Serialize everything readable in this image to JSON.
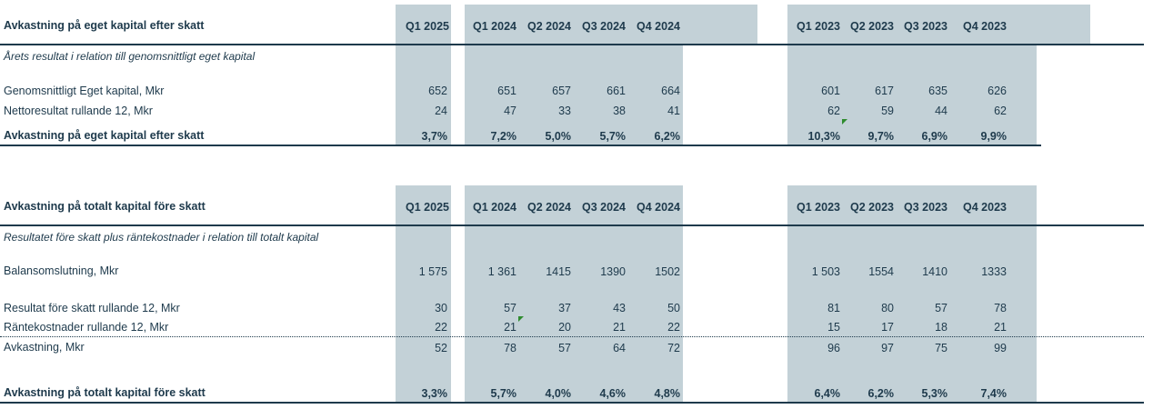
{
  "table1": {
    "title": "Avkastning på eget kapital efter skatt",
    "subtitle": "Årets resultat i relation till genomsnittligt eget kapital",
    "headers": [
      "Q1 2025",
      "Q1 2024",
      "Q2 2024",
      "Q3 2024",
      "Q4 2024",
      "Q1 2023",
      "Q2 2023",
      "Q3 2023",
      "Q4 2023"
    ],
    "rows": [
      {
        "label": "Genomsnittligt Eget kapital, Mkr",
        "values": [
          "652",
          "651",
          "657",
          "661",
          "664",
          "601",
          "617",
          "635",
          "626"
        ]
      },
      {
        "label": "Nettoresultat rullande 12, Mkr",
        "values": [
          "24",
          "47",
          "33",
          "38",
          "41",
          "62",
          "59",
          "44",
          "62"
        ]
      },
      {
        "label": "Avkastning på eget kapital efter skatt",
        "values": [
          "3,7%",
          "7,2%",
          "5,0%",
          "5,7%",
          "6,2%",
          "10,3%",
          "9,7%",
          "6,9%",
          "9,9%"
        ]
      }
    ]
  },
  "table2": {
    "title": "Avkastning på totalt kapital före skatt",
    "subtitle": "Resultatet före skatt plus räntekostnader i relation till totalt kapital",
    "headers": [
      "Q1 2025",
      "Q1 2024",
      "Q2 2024",
      "Q3 2024",
      "Q4 2024",
      "Q1 2023",
      "Q2 2023",
      "Q3 2023",
      "Q4 2023"
    ],
    "rows": [
      {
        "label": "Balansomslutning, Mkr",
        "values": [
          "1 575",
          "1 361",
          "1415",
          "1390",
          "1502",
          "1 503",
          "1554",
          "1410",
          "1333"
        ]
      },
      {
        "label": "Resultat före skatt rullande 12, Mkr",
        "values": [
          "30",
          "57",
          "37",
          "43",
          "50",
          "81",
          "80",
          "57",
          "78"
        ]
      },
      {
        "label": "Räntekostnader rullande 12, Mkr",
        "values": [
          "22",
          "21",
          "20",
          "21",
          "22",
          "15",
          "17",
          "18",
          "21"
        ]
      },
      {
        "label": "Avkastning, Mkr",
        "values": [
          "52",
          "78",
          "57",
          "64",
          "72",
          "96",
          "97",
          "75",
          "99"
        ]
      },
      {
        "label": "Avkastning på totalt kapital före skatt",
        "values": [
          "3,3%",
          "5,7%",
          "4,0%",
          "4,6%",
          "4,8%",
          "6,4%",
          "6,2%",
          "5,3%",
          "7,4%"
        ]
      }
    ]
  },
  "colors": {
    "band": "#c3d1d7",
    "text": "#1e3a4c",
    "flag": "#2e8b2e"
  }
}
